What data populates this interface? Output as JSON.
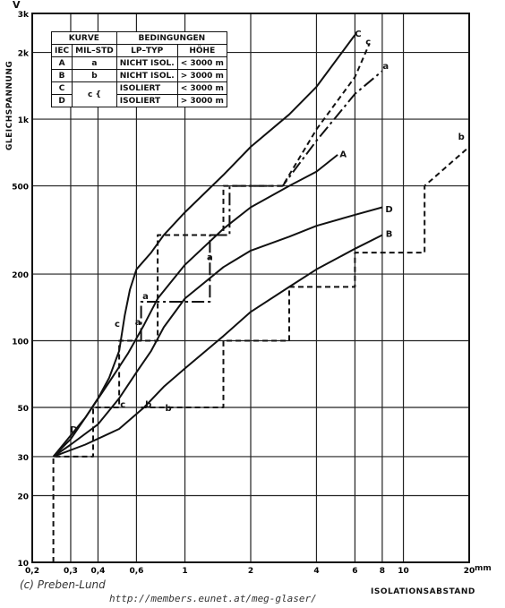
{
  "page": {
    "credit": "(c) Preben-Lund",
    "url": "http://members.eunet.at/meg-glaser/"
  },
  "legend": {
    "header_curve": "KURVE",
    "header_conditions": "BEDINGUNGEN",
    "col_iec": "IEC",
    "col_milstd": "MIL–STD",
    "col_lptyp": "LP–TYP",
    "col_hoehe": "HÖHE",
    "rows": [
      {
        "iec": "A",
        "mil": "a",
        "lp": "NICHT ISOL.",
        "hoehe": "< 3000 m"
      },
      {
        "iec": "B",
        "mil": "b",
        "lp": "NICHT ISOL.",
        "hoehe": "> 3000 m"
      },
      {
        "iec": "C",
        "mil": "c {",
        "lp": "ISOLIERT",
        "hoehe": "< 3000 m"
      },
      {
        "iec": "D",
        "mil": "",
        "lp": "ISOLIERT",
        "hoehe": "> 3000 m"
      }
    ]
  },
  "chart_data": {
    "type": "line",
    "ylabel": "GLEICHSPANNUNG",
    "yunit": "V",
    "xlabel": "ISOLATIONSABSTAND",
    "xunit": "mm",
    "xscale": "log",
    "yscale": "log",
    "xlim": [
      0.2,
      20
    ],
    "ylim": [
      10,
      3000
    ],
    "grid": true,
    "legend_position": "top-left",
    "x_ticks": [
      0.2,
      0.3,
      0.4,
      0.6,
      1,
      2,
      4,
      6,
      8,
      10,
      20
    ],
    "x_tick_labels": [
      "0,2",
      "0,3",
      "0,4",
      "0,6",
      "1",
      "2",
      "4",
      "6",
      "8",
      "10",
      "20"
    ],
    "y_ticks": [
      10,
      20,
      30,
      50,
      100,
      200,
      500,
      1000,
      2000,
      3000
    ],
    "y_tick_labels": [
      "10",
      "20",
      "30",
      "50",
      "100",
      "200",
      "500",
      "1k",
      "2k",
      "3k"
    ],
    "series": [
      {
        "name": "A",
        "style": "solid",
        "points": [
          [
            0.25,
            30
          ],
          [
            0.35,
            45
          ],
          [
            0.45,
            65
          ],
          [
            0.55,
            88
          ],
          [
            0.65,
            118
          ],
          [
            0.75,
            155
          ],
          [
            1,
            220
          ],
          [
            1.5,
            320
          ],
          [
            2,
            400
          ],
          [
            3,
            500
          ],
          [
            4,
            580
          ],
          [
            5,
            690
          ]
        ]
      },
      {
        "name": "B",
        "style": "solid",
        "points": [
          [
            0.25,
            30
          ],
          [
            0.35,
            34
          ],
          [
            0.5,
            40
          ],
          [
            0.65,
            50
          ],
          [
            0.8,
            62
          ],
          [
            1,
            75
          ],
          [
            1.5,
            105
          ],
          [
            2,
            135
          ],
          [
            3,
            175
          ],
          [
            4,
            210
          ],
          [
            6,
            260
          ],
          [
            8,
            300
          ]
        ]
      },
      {
        "name": "C",
        "style": "solid",
        "points": [
          [
            0.25,
            30
          ],
          [
            0.3,
            36
          ],
          [
            0.35,
            45
          ],
          [
            0.4,
            55
          ],
          [
            0.45,
            68
          ],
          [
            0.5,
            90
          ],
          [
            0.53,
            130
          ],
          [
            0.56,
            170
          ],
          [
            0.6,
            210
          ],
          [
            0.7,
            250
          ],
          [
            0.8,
            300
          ],
          [
            1,
            380
          ],
          [
            1.5,
            560
          ],
          [
            2,
            750
          ],
          [
            3,
            1050
          ],
          [
            4,
            1400
          ],
          [
            6,
            2400
          ]
        ]
      },
      {
        "name": "D",
        "style": "solid",
        "points": [
          [
            0.25,
            30
          ],
          [
            0.3,
            34
          ],
          [
            0.4,
            42
          ],
          [
            0.5,
            55
          ],
          [
            0.6,
            72
          ],
          [
            0.7,
            90
          ],
          [
            0.8,
            115
          ],
          [
            1,
            155
          ],
          [
            1.5,
            215
          ],
          [
            2,
            255
          ],
          [
            3,
            295
          ],
          [
            4,
            330
          ],
          [
            6,
            370
          ],
          [
            8,
            400
          ]
        ]
      },
      {
        "name": "a",
        "style": "dash-dot",
        "points": [
          [
            0.63,
            100
          ],
          [
            0.63,
            150
          ],
          [
            1.3,
            150
          ],
          [
            1.3,
            300
          ],
          [
            1.6,
            300
          ],
          [
            1.6,
            500
          ],
          [
            2.8,
            500
          ],
          [
            2.8,
            500
          ],
          [
            4,
            800
          ],
          [
            6,
            1300
          ],
          [
            8,
            1650
          ]
        ]
      },
      {
        "name": "b",
        "style": "dashed",
        "points": [
          [
            0.63,
            50
          ],
          [
            1.5,
            50
          ],
          [
            1.5,
            100
          ],
          [
            3,
            100
          ],
          [
            3,
            175
          ],
          [
            6,
            175
          ],
          [
            6,
            250
          ],
          [
            12.5,
            250
          ],
          [
            12.5,
            500
          ],
          [
            20,
            750
          ]
        ]
      },
      {
        "name": "c",
        "style": "dashed",
        "points": [
          [
            0.25,
            10
          ],
          [
            0.25,
            30
          ],
          [
            0.38,
            30
          ],
          [
            0.38,
            50
          ],
          [
            0.5,
            50
          ],
          [
            0.5,
            100
          ],
          [
            0.75,
            100
          ],
          [
            0.75,
            300
          ],
          [
            1.5,
            300
          ],
          [
            1.5,
            500
          ],
          [
            2.8,
            500
          ],
          [
            2.8,
            500
          ],
          [
            4,
            900
          ],
          [
            6,
            1550
          ],
          [
            7,
            2200
          ]
        ]
      }
    ],
    "annotations": [
      "A",
      "B",
      "C",
      "D",
      "a",
      "b",
      "c",
      "a",
      "c",
      "a",
      "b",
      "C",
      "c",
      "D",
      "A",
      "D",
      "B",
      "b"
    ]
  }
}
